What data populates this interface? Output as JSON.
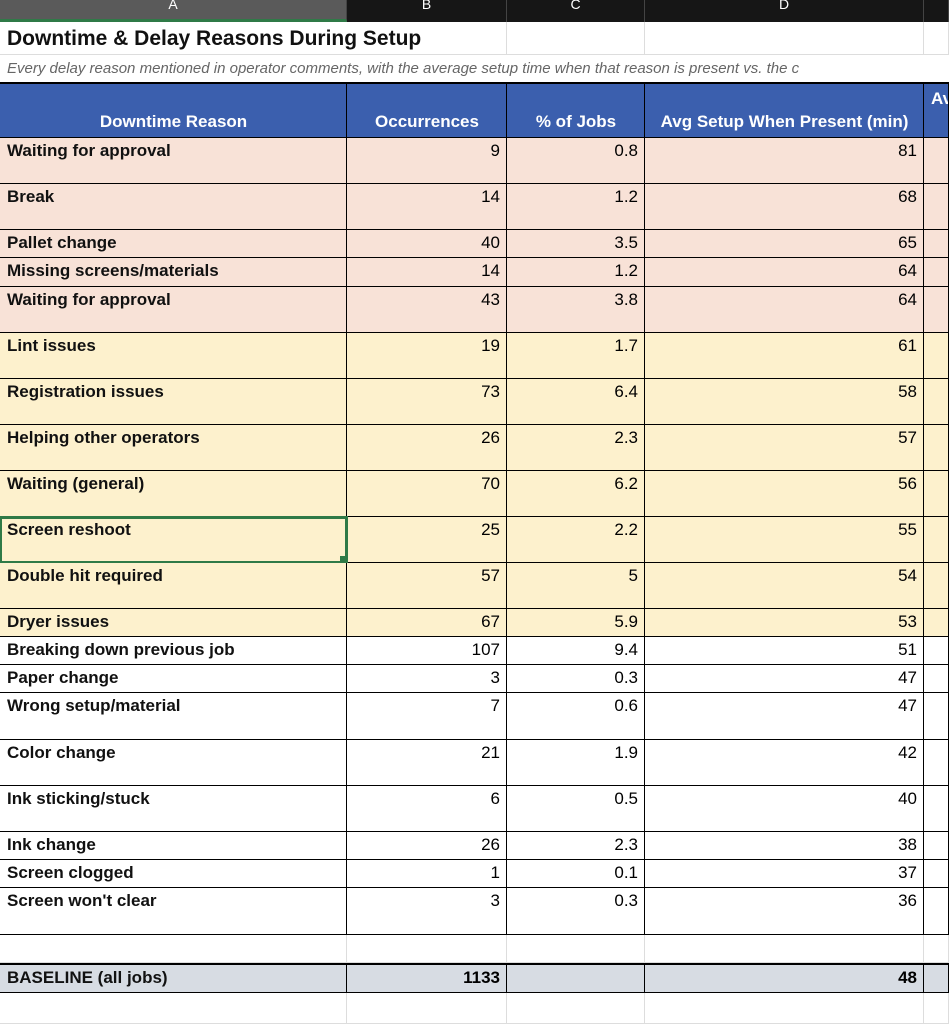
{
  "columns": [
    "A",
    "B",
    "C",
    "D",
    ""
  ],
  "title": "Downtime & Delay Reasons During Setup",
  "subtitle": "Every delay reason mentioned in operator comments, with the average setup time when that reason is present vs. the c",
  "headers": [
    "Downtime Reason",
    "Occurrences",
    "% of Jobs",
    "Avg Setup When Present (min)",
    "Av"
  ],
  "colors": {
    "header": "#3b5fae",
    "high": "#f8e2d7",
    "medium": "#fdf1cd",
    "baseline": "#d7dce3",
    "selection": "#2f7a47"
  },
  "rows": [
    {
      "reason": "Waiting for approval",
      "occ": "9",
      "pct": "0.8",
      "avg": "81"
    },
    {
      "reason": "Break",
      "occ": "14",
      "pct": "1.2",
      "avg": "68"
    },
    {
      "reason": "Pallet change",
      "occ": "40",
      "pct": "3.5",
      "avg": "65"
    },
    {
      "reason": "Missing screens/materials",
      "occ": "14",
      "pct": "1.2",
      "avg": "64"
    },
    {
      "reason": "Waiting for approval",
      "occ": "43",
      "pct": "3.8",
      "avg": "64"
    },
    {
      "reason": "Lint issues",
      "occ": "19",
      "pct": "1.7",
      "avg": "61"
    },
    {
      "reason": "Registration issues",
      "occ": "73",
      "pct": "6.4",
      "avg": "58"
    },
    {
      "reason": "Helping other operators",
      "occ": "26",
      "pct": "2.3",
      "avg": "57"
    },
    {
      "reason": "Waiting (general)",
      "occ": "70",
      "pct": "6.2",
      "avg": "56"
    },
    {
      "reason": "Screen reshoot",
      "occ": "25",
      "pct": "2.2",
      "avg": "55"
    },
    {
      "reason": "Double hit required",
      "occ": "57",
      "pct": "5",
      "avg": "54"
    },
    {
      "reason": "Dryer issues",
      "occ": "67",
      "pct": "5.9",
      "avg": "53"
    },
    {
      "reason": "Breaking down previous job",
      "occ": "107",
      "pct": "9.4",
      "avg": "51"
    },
    {
      "reason": "Paper change",
      "occ": "3",
      "pct": "0.3",
      "avg": "47"
    },
    {
      "reason": "Wrong setup/material",
      "occ": "7",
      "pct": "0.6",
      "avg": "47"
    },
    {
      "reason": "Color change",
      "occ": "21",
      "pct": "1.9",
      "avg": "42"
    },
    {
      "reason": "Ink sticking/stuck",
      "occ": "6",
      "pct": "0.5",
      "avg": "40"
    },
    {
      "reason": "Ink change",
      "occ": "26",
      "pct": "2.3",
      "avg": "38"
    },
    {
      "reason": "Screen clogged",
      "occ": "1",
      "pct": "0.1",
      "avg": "37"
    },
    {
      "reason": "Screen won't clear",
      "occ": "3",
      "pct": "0.3",
      "avg": "36"
    }
  ],
  "baseline": {
    "label": "BASELINE (all jobs)",
    "occ": "1133",
    "avg": "48"
  }
}
